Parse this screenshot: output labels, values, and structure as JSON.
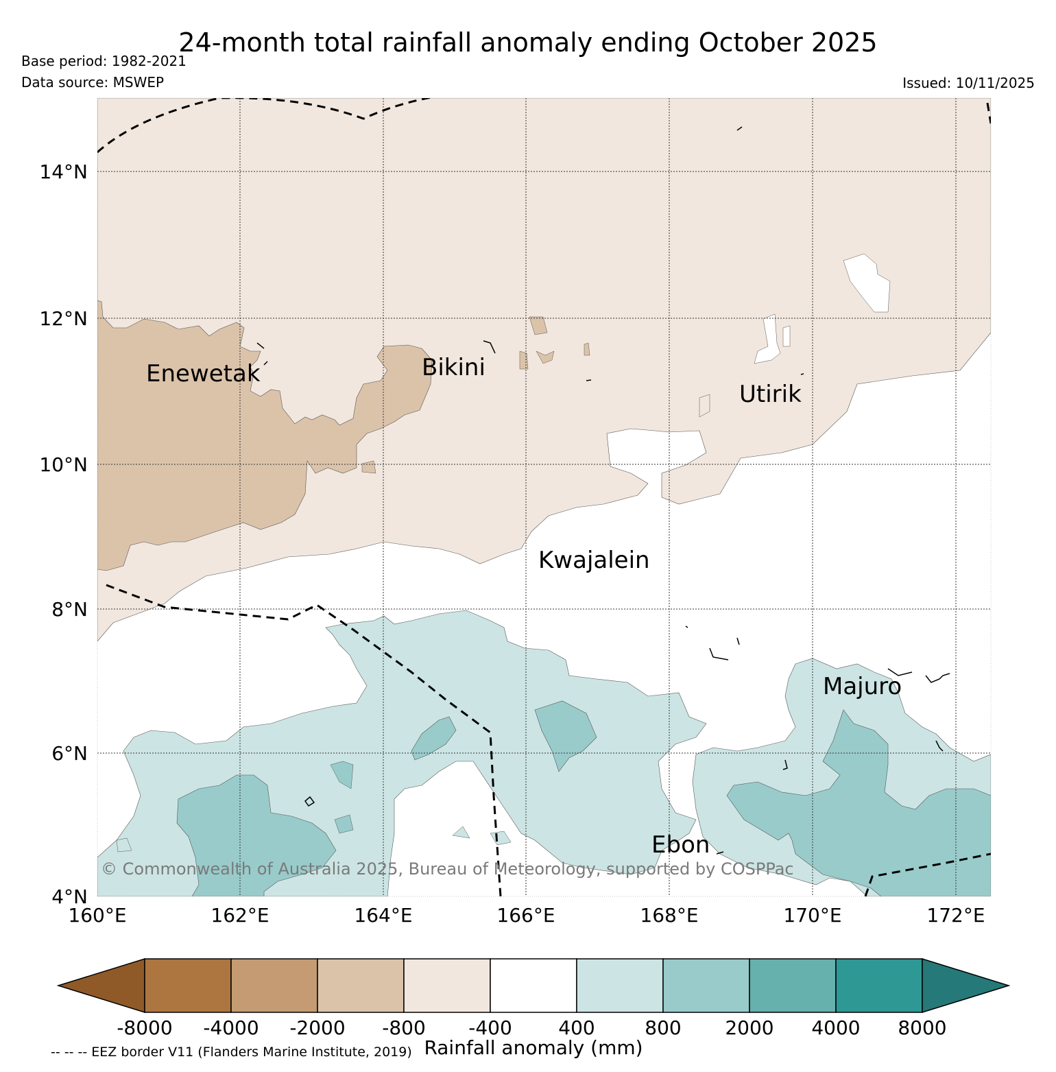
{
  "title": "24-month total rainfall anomaly ending October 2025",
  "base_period": "Base period: 1982-2021",
  "data_source": "Data source: MSWEP",
  "issued": "Issued: 10/11/2025",
  "map": {
    "lat_labels": [
      "14°N",
      "12°N",
      "10°N",
      "8°N",
      "6°N",
      "4°N"
    ],
    "lon_labels": [
      "160°E",
      "162°E",
      "164°E",
      "166°E",
      "168°E",
      "170°E",
      "172°E"
    ],
    "places": [
      "Enewetak",
      "Bikini",
      "Utirik",
      "Kwajalein",
      "Majuro",
      "Ebon"
    ],
    "copyright": "© Commonwealth of Australia 2025, Bureau of Meteorology, supported by COSPPac"
  },
  "colorbar": {
    "ticks": [
      "-8000",
      "-4000",
      "-2000",
      "-800",
      "-400",
      "400",
      "800",
      "2000",
      "4000",
      "8000"
    ],
    "colors": [
      "#8f5a28",
      "#ad7640",
      "#c49b72",
      "#dbc3aa",
      "#f1e7de",
      "#ffffff",
      "#cce5e4",
      "#99cbcb",
      "#66b0ae",
      "#2e9894",
      "#257978"
    ],
    "label": "Rainfall anomaly (mm)"
  },
  "eez_note": "-- -- -- EEZ border V11 (Flanders Marine Institute, 2019)"
}
